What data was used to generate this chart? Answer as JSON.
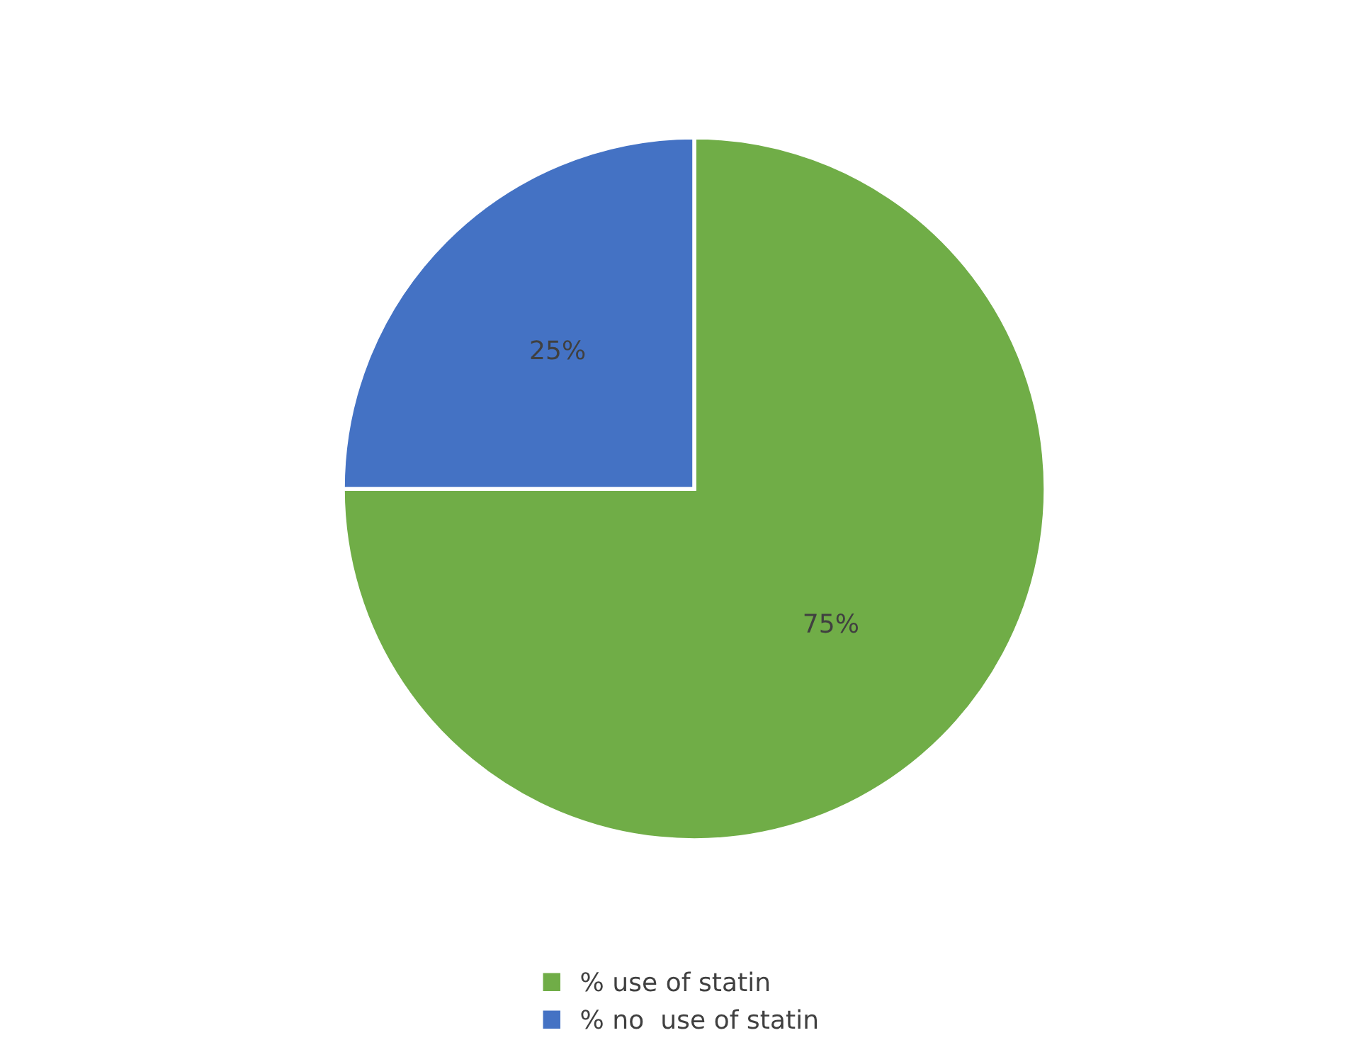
{
  "chart_data": {
    "type": "pie",
    "categories": [
      "% use of statin",
      "% no  use of statin"
    ],
    "values": [
      75,
      25
    ],
    "colors": [
      "#70ad47",
      "#4472c4"
    ],
    "value_labels": [
      "75%",
      "25%"
    ],
    "legend": "bottom"
  }
}
